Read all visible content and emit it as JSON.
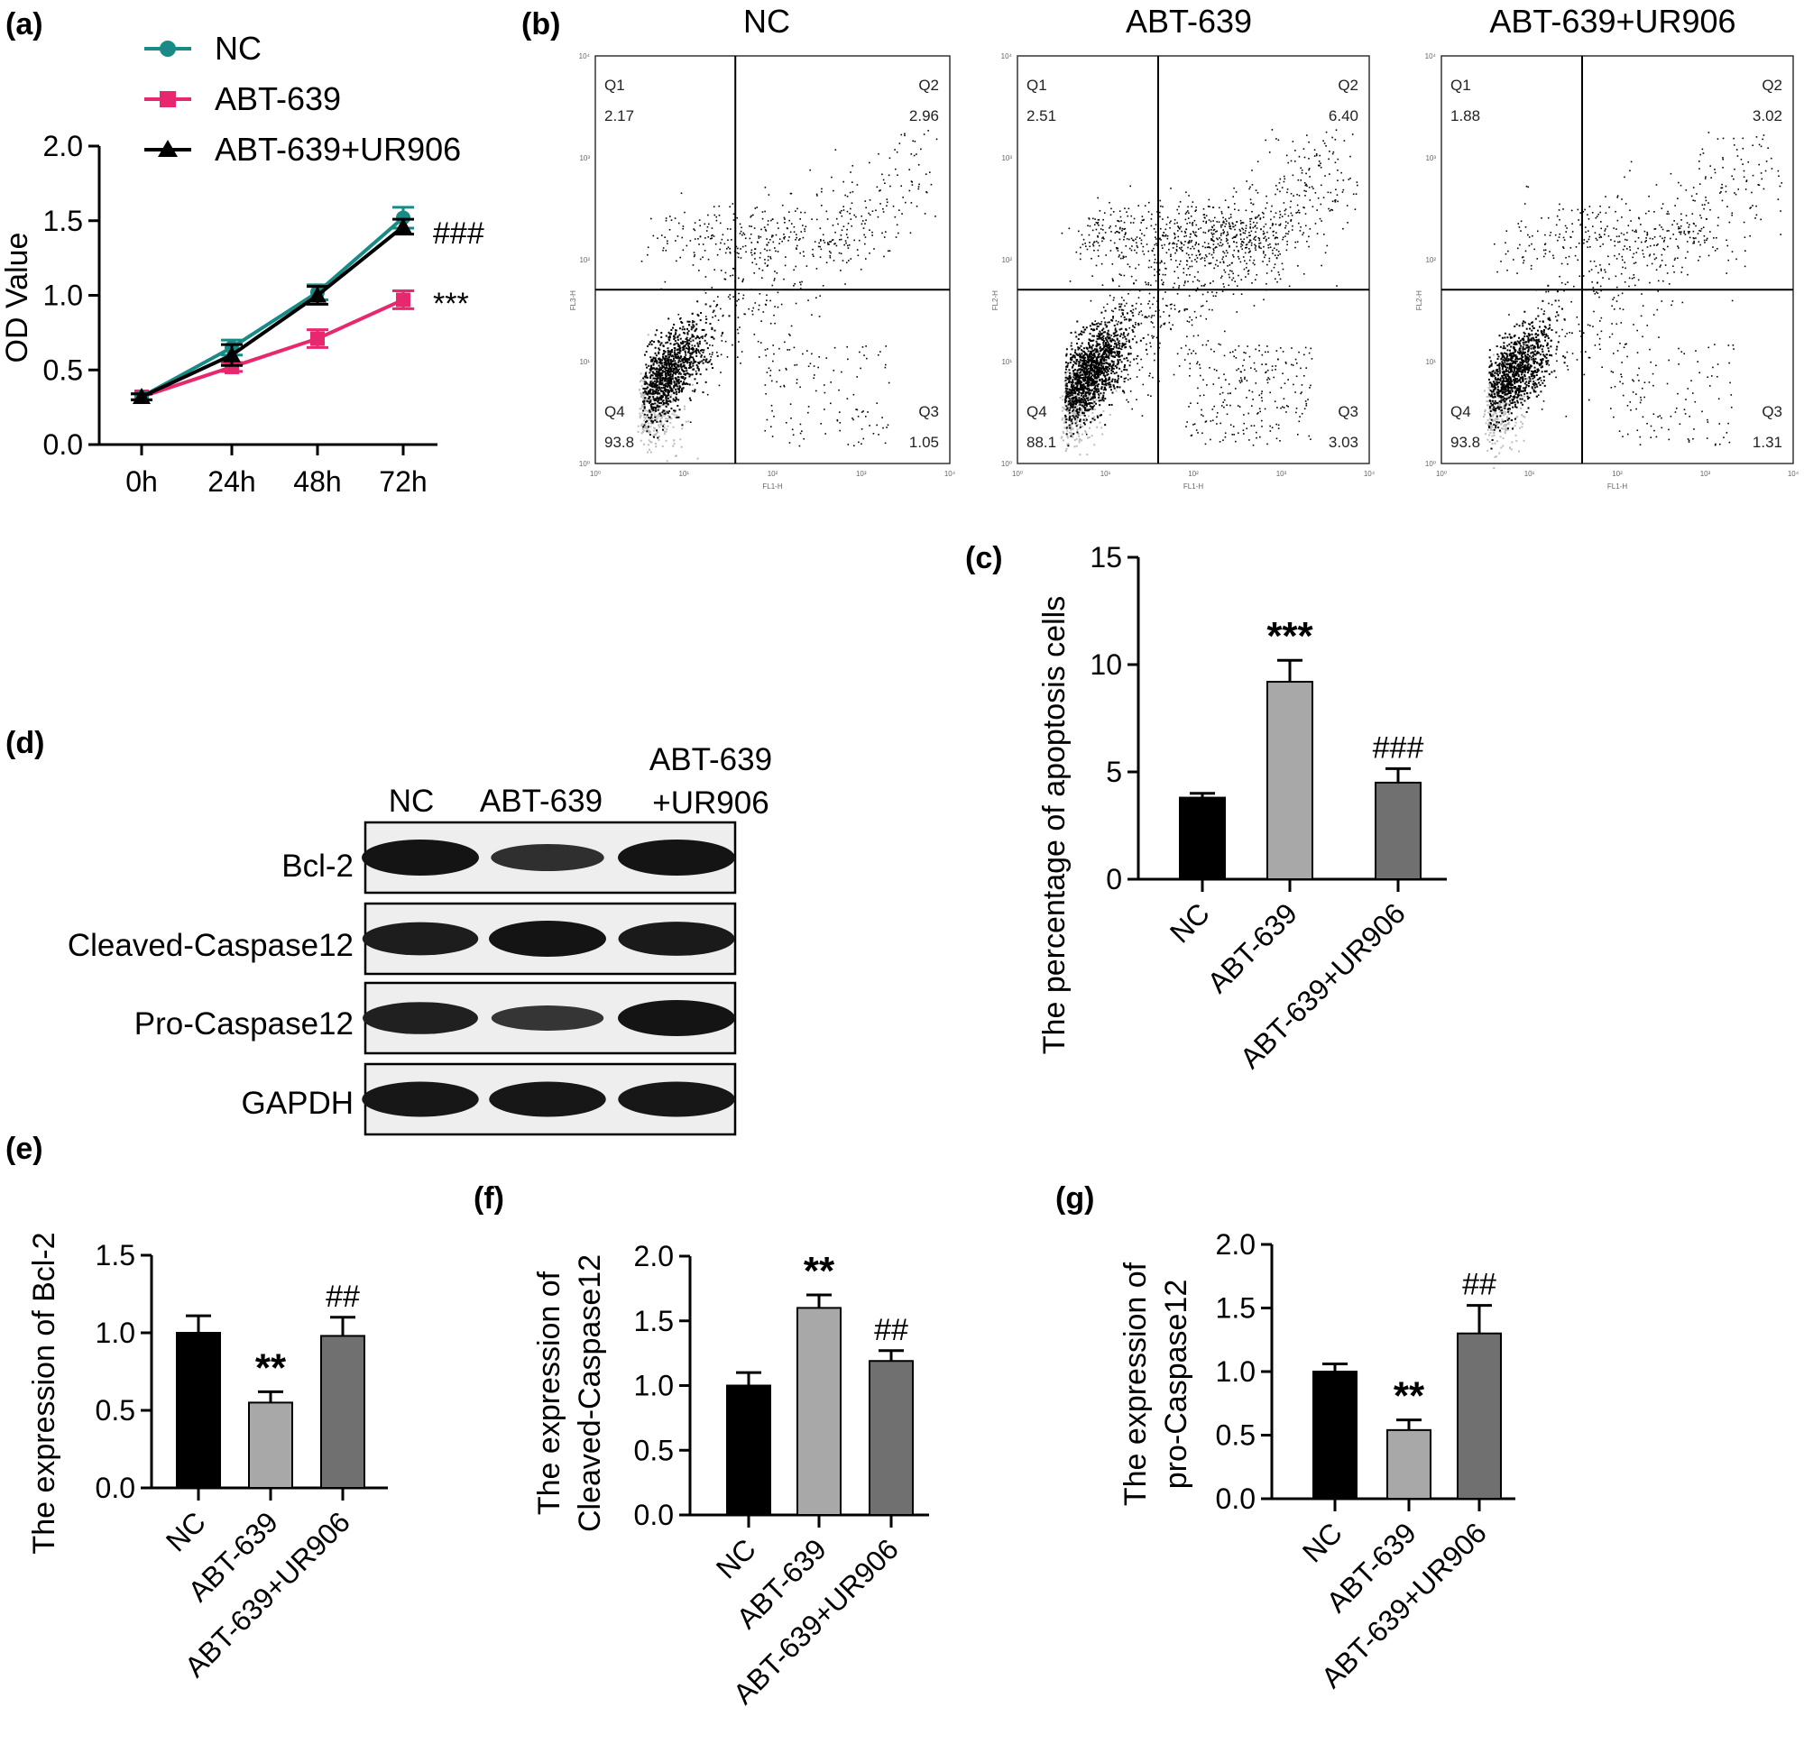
{
  "panel_labels": [
    "(a)",
    "(b)",
    "(c)",
    "(d)",
    "(e)",
    "(f)",
    "(g)"
  ],
  "colors": {
    "NC": "#1a8a86",
    "ABT-639": "#e8286e",
    "ABT-639+UR906": "#000000",
    "bar_NC": "#000000",
    "bar_ABT": "#a8a8a8",
    "bar_UR": "#707070"
  },
  "chart_data": [
    {
      "panel": "(a)",
      "type": "line",
      "title": "",
      "xlabel": "",
      "ylabel": "OD Value",
      "x": [
        "0h",
        "24h",
        "48h",
        "72h"
      ],
      "ylim": [
        0,
        2.0
      ],
      "yticks": [
        "0.0",
        "0.5",
        "1.0",
        "1.5",
        "2.0"
      ],
      "legend": "top-left",
      "series": [
        {
          "name": "NC",
          "values": [
            0.32,
            0.65,
            1.02,
            1.52
          ],
          "errors": [
            0.02,
            0.05,
            0.05,
            0.07
          ],
          "marker": "circle"
        },
        {
          "name": "ABT-639",
          "values": [
            0.32,
            0.52,
            0.71,
            0.97
          ],
          "errors": [
            0.02,
            0.03,
            0.06,
            0.06
          ],
          "marker": "square"
        },
        {
          "name": "ABT-639+UR906",
          "values": [
            0.32,
            0.6,
            1.0,
            1.46
          ],
          "errors": [
            0.02,
            0.07,
            0.06,
            0.05
          ],
          "marker": "triangle"
        }
      ],
      "annotations": [
        "###",
        "***"
      ]
    },
    {
      "panel": "(b)",
      "type": "scatter",
      "plots": [
        {
          "title": "NC",
          "quadrants": {
            "Q1": "2.17",
            "Q2": "2.96",
            "Q3": "1.05",
            "Q4": "93.8"
          }
        },
        {
          "title": "ABT-639",
          "quadrants": {
            "Q1": "2.51",
            "Q2": "6.40",
            "Q3": "3.03",
            "Q4": "88.1"
          }
        },
        {
          "title": "ABT-639+UR906",
          "quadrants": {
            "Q1": "1.88",
            "Q2": "3.02",
            "Q3": "1.31",
            "Q4": "93.8"
          }
        }
      ],
      "quadrant_names": [
        "Q1",
        "Q2",
        "Q3",
        "Q4"
      ],
      "xaxis_label": "FL1-H",
      "yaxis_labels": [
        "FL3-H",
        "FL2-H",
        "FL2-H"
      ],
      "xticks": [
        "10⁰",
        "10¹",
        "10²",
        "10³",
        "10⁴"
      ],
      "yticks": [
        "10⁰",
        "10¹",
        "10²",
        "10³",
        "10⁴"
      ]
    },
    {
      "panel": "(c)",
      "type": "bar",
      "categories": [
        "NC",
        "ABT-639",
        "ABT-639+UR906"
      ],
      "values": [
        3.8,
        9.2,
        4.5
      ],
      "errors": [
        0.2,
        1.0,
        0.65
      ],
      "ylabel": "The percentage of apoptosis cells",
      "ylim": [
        0,
        15
      ],
      "yticks": [
        "0",
        "5",
        "10",
        "15"
      ],
      "annotations": [
        "",
        "***",
        "###"
      ]
    },
    {
      "panel": "(e)",
      "type": "bar",
      "categories": [
        "NC",
        "ABT-639",
        "ABT-639+UR906"
      ],
      "values": [
        1.0,
        0.55,
        0.98
      ],
      "errors": [
        0.11,
        0.07,
        0.12
      ],
      "ylabel": "The expression of Bcl-2",
      "ylim": [
        0,
        1.5
      ],
      "yticks": [
        "0.0",
        "0.5",
        "1.0",
        "1.5"
      ],
      "annotations": [
        "",
        "**",
        "##"
      ]
    },
    {
      "panel": "(f)",
      "type": "bar",
      "categories": [
        "NC",
        "ABT-639",
        "ABT-639+UR906"
      ],
      "values": [
        1.0,
        1.6,
        1.19
      ],
      "errors": [
        0.1,
        0.1,
        0.08
      ],
      "ylabel": [
        "The expression of",
        "Cleaved-Caspase12"
      ],
      "ylim": [
        0,
        2.0
      ],
      "yticks": [
        "0.0",
        "0.5",
        "1.0",
        "1.5",
        "2.0"
      ],
      "annotations": [
        "",
        "**",
        "##"
      ]
    },
    {
      "panel": "(g)",
      "type": "bar",
      "categories": [
        "NC",
        "ABT-639",
        "ABT-639+UR906"
      ],
      "values": [
        1.0,
        0.54,
        1.3
      ],
      "errors": [
        0.06,
        0.08,
        0.22
      ],
      "ylabel": [
        "The expression of",
        "pro-Caspase12"
      ],
      "ylim": [
        0,
        2.0
      ],
      "yticks": [
        "0.0",
        "0.5",
        "1.0",
        "1.5",
        "2.0"
      ],
      "annotations": [
        "",
        "**",
        "##"
      ]
    }
  ],
  "western_blot": {
    "panel": "(d)",
    "lanes": [
      "NC",
      "ABT-639",
      "ABT-639",
      "+UR906"
    ],
    "rows": [
      {
        "label": "Bcl-2",
        "intensities": [
          1.0,
          0.55,
          1.0
        ]
      },
      {
        "label": "Cleaved-Caspase12",
        "intensities": [
          0.85,
          1.0,
          0.9
        ]
      },
      {
        "label": "Pro-Caspase12",
        "intensities": [
          0.8,
          0.45,
          1.0
        ]
      },
      {
        "label": "GAPDH",
        "intensities": [
          0.95,
          0.95,
          0.95
        ]
      }
    ]
  }
}
